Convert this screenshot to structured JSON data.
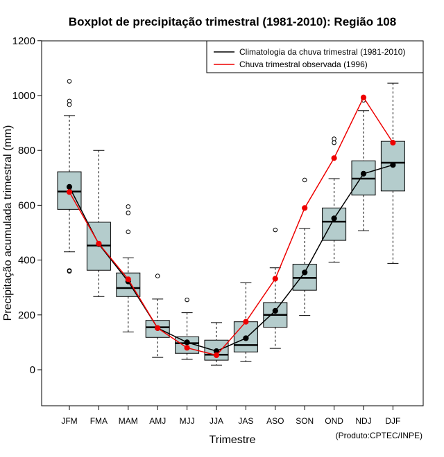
{
  "colors": {
    "box_fill": "#b4cccc",
    "climatology": "#000000",
    "observed": "#ee0000"
  },
  "chart_data": {
    "type": "boxplot",
    "title": "Boxplot de precipitação trimestral (1981-2010): Região 108",
    "xlabel": "Trimestre",
    "ylabel": "Precipitação acumulada trimestral (mm)",
    "ylim": [
      -130,
      1200
    ],
    "yticks": [
      0,
      200,
      400,
      600,
      800,
      1000,
      1200
    ],
    "categories": [
      "JFM",
      "FMA",
      "MAM",
      "AMJ",
      "MJJ",
      "JJA",
      "JAS",
      "ASO",
      "SON",
      "OND",
      "NDJ",
      "DJF"
    ],
    "boxes": [
      {
        "whisker_low": 430,
        "q1": 585,
        "median": 650,
        "q3": 722,
        "whisker_high": 927,
        "outliers": [
          1052,
          980,
          967,
          362,
          359
        ]
      },
      {
        "whisker_low": 267,
        "q1": 363,
        "median": 453,
        "q3": 538,
        "whisker_high": 800,
        "outliers": []
      },
      {
        "whisker_low": 138,
        "q1": 267,
        "median": 298,
        "q3": 353,
        "whisker_high": 408,
        "outliers": [
          595,
          572,
          503
        ]
      },
      {
        "whisker_low": 45,
        "q1": 118,
        "median": 155,
        "q3": 180,
        "whisker_high": 258,
        "outliers": [
          342
        ]
      },
      {
        "whisker_low": 38,
        "q1": 60,
        "median": 97,
        "q3": 120,
        "whisker_high": 208,
        "outliers": [
          255
        ]
      },
      {
        "whisker_low": 17,
        "q1": 35,
        "median": 55,
        "q3": 108,
        "whisker_high": 172,
        "outliers": []
      },
      {
        "whisker_low": 30,
        "q1": 65,
        "median": 90,
        "q3": 175,
        "whisker_high": 317,
        "outliers": []
      },
      {
        "whisker_low": 78,
        "q1": 155,
        "median": 200,
        "q3": 245,
        "whisker_high": 372,
        "outliers": [
          510
        ]
      },
      {
        "whisker_low": 198,
        "q1": 290,
        "median": 335,
        "q3": 385,
        "whisker_high": 515,
        "outliers": [
          692
        ]
      },
      {
        "whisker_low": 392,
        "q1": 472,
        "median": 540,
        "q3": 590,
        "whisker_high": 697,
        "outliers": [
          842,
          828
        ]
      },
      {
        "whisker_low": 507,
        "q1": 637,
        "median": 697,
        "q3": 762,
        "whisker_high": 945,
        "outliers": [
          983
        ]
      },
      {
        "whisker_low": 388,
        "q1": 652,
        "median": 755,
        "q3": 833,
        "whisker_high": 1045,
        "outliers": []
      }
    ],
    "series": [
      {
        "name": "Climatologia da chuva trimestral (1981-2010)",
        "color": "#000000",
        "values": [
          667,
          458,
          322,
          152,
          100,
          68,
          115,
          215,
          355,
          552,
          715,
          747
        ]
      },
      {
        "name": "Chuva trimestral observada (1996)",
        "color": "#ee0000",
        "values": [
          648,
          460,
          330,
          152,
          80,
          53,
          175,
          332,
          590,
          772,
          993,
          828
        ]
      }
    ],
    "legend_position": "top-right",
    "credit": "(Produto:CPTEC/INPE)"
  }
}
